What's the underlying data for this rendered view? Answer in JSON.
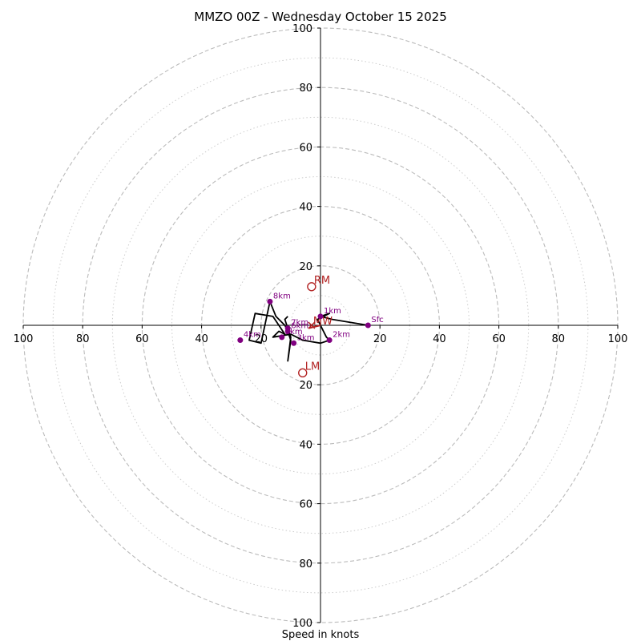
{
  "chart_data": {
    "type": "hodograph",
    "title": "MMZO 00Z - Wednesday October 15 2025",
    "xlabel": "Speed in knots",
    "axis_range": [
      -100,
      100
    ],
    "major_rings": [
      20,
      40,
      60,
      80,
      100
    ],
    "minor_rings": [
      10,
      30,
      50,
      70,
      90
    ],
    "x_ticks": [
      -100,
      -80,
      -60,
      -40,
      -20,
      20,
      40,
      60,
      80,
      100
    ],
    "x_tick_labels": [
      "100",
      "80",
      "60",
      "40",
      "20",
      "20",
      "40",
      "60",
      "80",
      "100"
    ],
    "y_ticks": [
      100,
      80,
      60,
      40,
      20,
      -20,
      -40,
      -60,
      -80,
      -100
    ],
    "y_tick_labels": [
      "100",
      "80",
      "60",
      "40",
      "20",
      "20",
      "40",
      "60",
      "80",
      "100"
    ],
    "colors": {
      "trace": "#000000",
      "points": "#800080",
      "motion": "#b22222",
      "grid": "#bbbbbb",
      "axis": "#000000"
    },
    "trace": [
      [
        16,
        0
      ],
      [
        4,
        2
      ],
      [
        0,
        3
      ],
      [
        3,
        4
      ],
      [
        1,
        3
      ],
      [
        -1,
        2
      ],
      [
        2,
        -4
      ],
      [
        3,
        -5
      ],
      [
        0,
        -6
      ],
      [
        -6,
        -5
      ],
      [
        -10,
        -3
      ],
      [
        -16,
        -4
      ],
      [
        -14,
        -2
      ],
      [
        -12,
        -3
      ],
      [
        -16,
        3
      ],
      [
        -22,
        4
      ],
      [
        -24,
        -5
      ],
      [
        -20,
        -6
      ],
      [
        -17,
        8
      ],
      [
        -15,
        3
      ],
      [
        -12,
        0
      ],
      [
        -11,
        -2
      ],
      [
        -10,
        -5
      ],
      [
        -11,
        -12
      ],
      [
        -10,
        -4
      ],
      [
        -12,
        2
      ],
      [
        -11,
        3
      ]
    ],
    "labeled_points": [
      {
        "label": "Sfc",
        "u": 16,
        "v": 0
      },
      {
        "label": "1km",
        "u": 0,
        "v": 3
      },
      {
        "label": "2km",
        "u": 3,
        "v": -5
      },
      {
        "label": "3km",
        "u": -9,
        "v": -6
      },
      {
        "label": "4km",
        "u": -27,
        "v": -5
      },
      {
        "label": "5km",
        "u": -13,
        "v": -4
      },
      {
        "label": "6km",
        "u": -11,
        "v": -2
      },
      {
        "label": "7km",
        "u": -11,
        "v": -1
      },
      {
        "label": "8km",
        "u": -17,
        "v": 8
      }
    ],
    "storm_motion": [
      {
        "label": "RM",
        "u": -3,
        "v": 13
      },
      {
        "label": "LM",
        "u": -6,
        "v": -16
      },
      {
        "label": "MW",
        "u": -3,
        "v": 0
      }
    ],
    "shear_vector": {
      "from": [
        0,
        0
      ],
      "to": [
        -4,
        -1
      ]
    }
  }
}
